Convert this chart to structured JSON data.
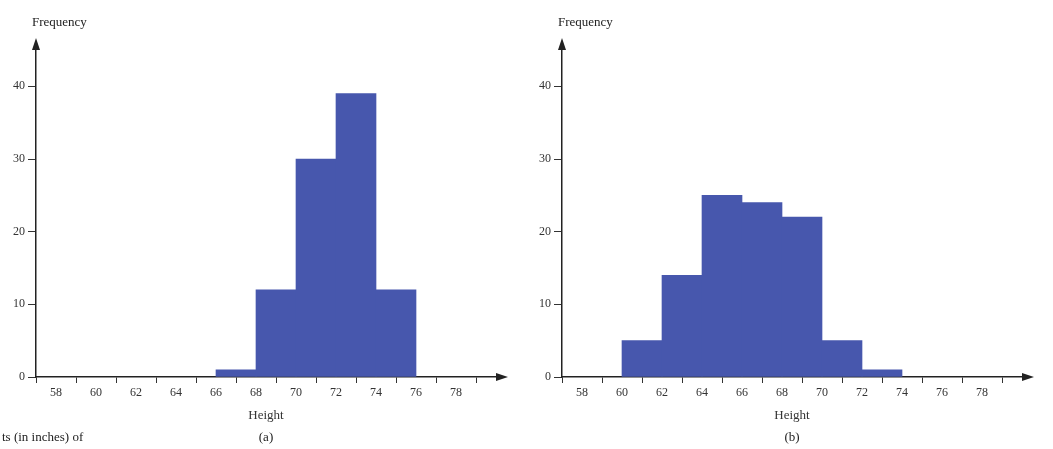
{
  "chart_data": [
    {
      "type": "histogram",
      "ylabel": "Frequency",
      "xlabel": "Height",
      "annotations": [
        "(a)",
        "ts (in inches) of"
      ],
      "bins": [
        66,
        68,
        70,
        72,
        74,
        76
      ],
      "values": [
        1,
        12,
        30,
        39,
        12
      ],
      "color": "#4757ad",
      "xlim": [
        57,
        80
      ],
      "xticks": [
        58,
        60,
        62,
        64,
        66,
        68,
        70,
        72,
        74,
        76,
        78
      ],
      "ylim": [
        0,
        45
      ],
      "yticks": [
        0,
        10,
        20,
        30,
        40
      ],
      "grid": false,
      "legend": false
    },
    {
      "type": "histogram",
      "ylabel": "Frequency",
      "xlabel": "Height",
      "annotations": [
        "(b)"
      ],
      "bins": [
        60,
        62,
        64,
        66,
        68,
        70,
        72,
        74
      ],
      "values": [
        5,
        14,
        25,
        24,
        22,
        5,
        1
      ],
      "color": "#4757ad",
      "xlim": [
        57,
        80
      ],
      "xticks": [
        58,
        60,
        62,
        64,
        66,
        68,
        70,
        72,
        74,
        76,
        78
      ],
      "ylim": [
        0,
        45
      ],
      "yticks": [
        0,
        10,
        20,
        30,
        40
      ],
      "grid": false,
      "legend": false
    }
  ]
}
